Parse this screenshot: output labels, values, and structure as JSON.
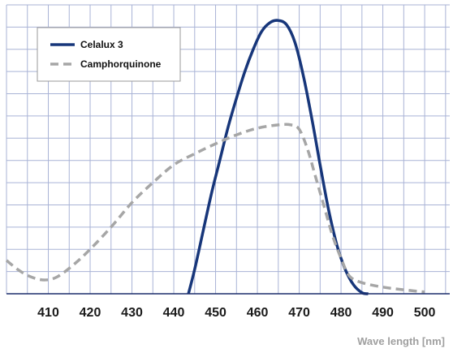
{
  "chart_data": {
    "type": "line",
    "title": "",
    "xlabel": "Wave length [nm]",
    "ylabel": "",
    "xlim": [
      400,
      506
    ],
    "ylim": [
      0,
      13
    ],
    "grid": true,
    "legend_position": "top-left",
    "x_ticks": [
      "410",
      "420",
      "430",
      "440",
      "450",
      "460",
      "470",
      "480",
      "490",
      "500"
    ],
    "colors": {
      "grid": "#a9b3d6",
      "axis": "#1b2d6b",
      "celalux": "#17367a",
      "camphor": "#a6a6a6"
    },
    "series": [
      {
        "name": "Celalux 3",
        "style": "solid",
        "x": [
          443.5,
          445,
          447,
          449,
          451,
          453,
          455,
          457,
          459,
          461,
          463,
          465,
          467,
          469,
          471,
          473,
          475,
          477,
          479,
          481,
          483,
          485,
          486.5
        ],
        "y": [
          0,
          1.1,
          2.8,
          4.5,
          6.0,
          7.5,
          8.8,
          10.0,
          11.0,
          11.8,
          12.2,
          12.3,
          12.1,
          11.3,
          9.8,
          7.9,
          5.8,
          3.8,
          2.2,
          1.1,
          0.4,
          0.05,
          0
        ]
      },
      {
        "name": "Camphorquinone",
        "style": "dashed",
        "x": [
          400,
          403,
          406,
          409,
          412,
          416,
          420,
          425,
          430,
          435,
          440,
          445,
          450,
          455,
          460,
          465,
          468,
          470,
          472,
          474,
          476,
          478,
          480,
          482,
          485,
          490,
          495,
          500
        ],
        "y": [
          1.5,
          1.05,
          0.75,
          0.62,
          0.75,
          1.3,
          2.0,
          3.0,
          4.1,
          5.0,
          5.8,
          6.3,
          6.75,
          7.15,
          7.45,
          7.6,
          7.6,
          7.4,
          6.5,
          5.2,
          3.9,
          2.6,
          1.6,
          0.8,
          0.5,
          0.3,
          0.18,
          0.08
        ]
      }
    ]
  }
}
